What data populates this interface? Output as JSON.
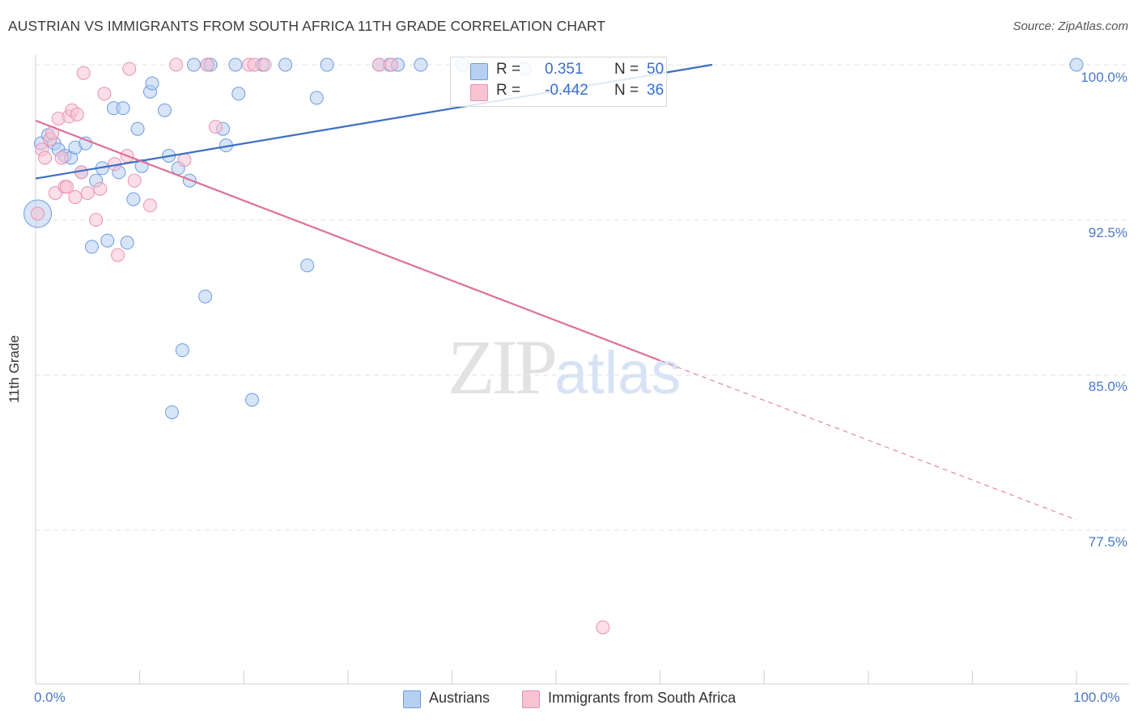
{
  "header": {
    "title": "AUSTRIAN VS IMMIGRANTS FROM SOUTH AFRICA 11TH GRADE CORRELATION CHART",
    "source": "Source: ZipAtlas.com"
  },
  "watermark": {
    "zip": "ZIP",
    "atlas": "atlas"
  },
  "colors": {
    "blue": "#3b6fc6",
    "blue_fill": "#b7cff0",
    "pink": "#e07098",
    "pink_fill": "#f7c3d3",
    "grid": "#e4e4e4",
    "axis_text": "#4a78c8"
  },
  "legend": {
    "series": [
      {
        "r_label": "R =",
        "r_value": "0.351",
        "n_label": "N =",
        "n_value": "50"
      },
      {
        "r_label": "R =",
        "r_value": "-0.442",
        "n_label": "N =",
        "n_value": "36"
      }
    ]
  },
  "chart_data": {
    "type": "scatter",
    "title": "AUSTRIAN VS IMMIGRANTS FROM SOUTH AFRICA 11TH GRADE CORRELATION CHART",
    "xlabel": "",
    "ylabel": "11th Grade",
    "xlim": [
      0,
      100
    ],
    "ylim": [
      70,
      101.5
    ],
    "x_tick_labels": [
      "0.0%",
      "100.0%"
    ],
    "y_ticks": [
      100,
      92.5,
      85,
      77.5
    ],
    "y_tick_labels": [
      "100.0%",
      "92.5%",
      "85.0%",
      "77.5%"
    ],
    "grid": true,
    "legend_position": "bottom-center",
    "series": [
      {
        "name": "Austrians",
        "color": "#3b6fc6",
        "r": 0.351,
        "n": 50,
        "trend": {
          "x": [
            0,
            65
          ],
          "y": [
            94.5,
            100.0
          ],
          "style": "solid"
        },
        "points": [
          {
            "x": 0.2,
            "y": 92.8,
            "big": true
          },
          {
            "x": 0.5,
            "y": 96.2
          },
          {
            "x": 1.2,
            "y": 96.6
          },
          {
            "x": 1.8,
            "y": 96.2
          },
          {
            "x": 2.2,
            "y": 95.9
          },
          {
            "x": 2.8,
            "y": 95.6
          },
          {
            "x": 3.4,
            "y": 95.5
          },
          {
            "x": 3.8,
            "y": 96.0
          },
          {
            "x": 4.4,
            "y": 94.8
          },
          {
            "x": 4.8,
            "y": 96.2
          },
          {
            "x": 5.4,
            "y": 91.2
          },
          {
            "x": 5.8,
            "y": 94.4
          },
          {
            "x": 6.4,
            "y": 95.0
          },
          {
            "x": 6.9,
            "y": 91.5
          },
          {
            "x": 7.5,
            "y": 97.9
          },
          {
            "x": 8.0,
            "y": 94.8
          },
          {
            "x": 8.4,
            "y": 97.9
          },
          {
            "x": 8.8,
            "y": 91.4
          },
          {
            "x": 9.4,
            "y": 93.5
          },
          {
            "x": 9.8,
            "y": 96.9
          },
          {
            "x": 10.2,
            "y": 95.1
          },
          {
            "x": 11.0,
            "y": 98.7
          },
          {
            "x": 11.2,
            "y": 99.1
          },
          {
            "x": 12.4,
            "y": 97.8
          },
          {
            "x": 12.8,
            "y": 95.6
          },
          {
            "x": 13.1,
            "y": 83.2
          },
          {
            "x": 13.7,
            "y": 95.0
          },
          {
            "x": 14.1,
            "y": 86.2
          },
          {
            "x": 14.8,
            "y": 94.4
          },
          {
            "x": 15.2,
            "y": 100.0
          },
          {
            "x": 16.5,
            "y": 100.0
          },
          {
            "x": 16.8,
            "y": 100.0
          },
          {
            "x": 16.3,
            "y": 88.8
          },
          {
            "x": 18.0,
            "y": 96.9
          },
          {
            "x": 18.3,
            "y": 96.1
          },
          {
            "x": 19.2,
            "y": 100.0
          },
          {
            "x": 19.5,
            "y": 98.6
          },
          {
            "x": 20.8,
            "y": 83.8
          },
          {
            "x": 21.8,
            "y": 100.0
          },
          {
            "x": 24.0,
            "y": 100.0
          },
          {
            "x": 26.1,
            "y": 90.3
          },
          {
            "x": 27.0,
            "y": 98.4
          },
          {
            "x": 28.0,
            "y": 100.0
          },
          {
            "x": 33.0,
            "y": 100.0
          },
          {
            "x": 34.0,
            "y": 100.0
          },
          {
            "x": 34.8,
            "y": 100.0
          },
          {
            "x": 37.0,
            "y": 100.0
          },
          {
            "x": 41.0,
            "y": 100.0
          },
          {
            "x": 47.0,
            "y": 99.8
          },
          {
            "x": 100.0,
            "y": 100.0
          }
        ]
      },
      {
        "name": "Immigrants from South Africa",
        "color": "#e07098",
        "r": -0.442,
        "n": 36,
        "trend": {
          "x": [
            0,
            60
          ],
          "y": [
            97.3,
            85.7
          ],
          "style": "solid",
          "extension": {
            "x": [
              60,
              100
            ],
            "y": [
              85.7,
              78.0
            ],
            "style": "dashed"
          }
        },
        "points": [
          {
            "x": 0.2,
            "y": 92.8
          },
          {
            "x": 0.6,
            "y": 95.9
          },
          {
            "x": 0.9,
            "y": 95.5
          },
          {
            "x": 1.4,
            "y": 96.4
          },
          {
            "x": 1.6,
            "y": 96.7
          },
          {
            "x": 1.9,
            "y": 93.8
          },
          {
            "x": 2.2,
            "y": 97.4
          },
          {
            "x": 2.5,
            "y": 95.5
          },
          {
            "x": 2.8,
            "y": 94.1
          },
          {
            "x": 3.0,
            "y": 94.1
          },
          {
            "x": 3.2,
            "y": 97.5
          },
          {
            "x": 3.5,
            "y": 97.8
          },
          {
            "x": 3.8,
            "y": 93.6
          },
          {
            "x": 4.0,
            "y": 97.6
          },
          {
            "x": 4.4,
            "y": 94.8
          },
          {
            "x": 4.6,
            "y": 99.6
          },
          {
            "x": 5.0,
            "y": 93.8
          },
          {
            "x": 5.8,
            "y": 92.5
          },
          {
            "x": 6.2,
            "y": 94.0
          },
          {
            "x": 6.6,
            "y": 98.6
          },
          {
            "x": 7.6,
            "y": 95.2
          },
          {
            "x": 7.9,
            "y": 90.8
          },
          {
            "x": 8.8,
            "y": 95.6
          },
          {
            "x": 9.0,
            "y": 99.8
          },
          {
            "x": 9.5,
            "y": 94.4
          },
          {
            "x": 11.0,
            "y": 93.2
          },
          {
            "x": 13.5,
            "y": 100.0
          },
          {
            "x": 14.3,
            "y": 95.4
          },
          {
            "x": 16.5,
            "y": 100.0
          },
          {
            "x": 17.3,
            "y": 97.0
          },
          {
            "x": 20.5,
            "y": 100.0
          },
          {
            "x": 21.0,
            "y": 100.0
          },
          {
            "x": 22.0,
            "y": 100.0
          },
          {
            "x": 33.0,
            "y": 100.0
          },
          {
            "x": 34.2,
            "y": 100.0
          },
          {
            "x": 54.5,
            "y": 72.8
          }
        ]
      }
    ]
  }
}
